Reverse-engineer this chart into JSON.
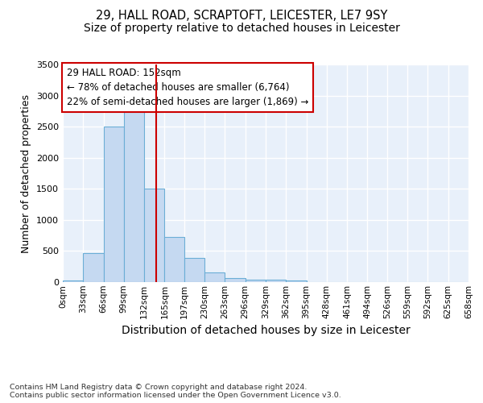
{
  "title1": "29, HALL ROAD, SCRAPTOFT, LEICESTER, LE7 9SY",
  "title2": "Size of property relative to detached houses in Leicester",
  "xlabel": "Distribution of detached houses by size in Leicester",
  "ylabel": "Number of detached properties",
  "footnote": "Contains HM Land Registry data © Crown copyright and database right 2024.\nContains public sector information licensed under the Open Government Licence v3.0.",
  "bin_edges": [
    0,
    33,
    66,
    99,
    132,
    165,
    197,
    230,
    263,
    296,
    329,
    362,
    395,
    428,
    461,
    494,
    526,
    559,
    592,
    625,
    658
  ],
  "bin_labels": [
    "0sqm",
    "33sqm",
    "66sqm",
    "99sqm",
    "132sqm",
    "165sqm",
    "197sqm",
    "230sqm",
    "263sqm",
    "296sqm",
    "329sqm",
    "362sqm",
    "395sqm",
    "428sqm",
    "461sqm",
    "494sqm",
    "526sqm",
    "559sqm",
    "592sqm",
    "625sqm",
    "658sqm"
  ],
  "bar_heights": [
    20,
    470,
    2500,
    2820,
    1500,
    730,
    385,
    155,
    65,
    45,
    45,
    25,
    0,
    0,
    0,
    0,
    0,
    0,
    0,
    0
  ],
  "bar_color": "#C5D9F1",
  "bar_edge_color": "#6BAED6",
  "vline_x": 152,
  "vline_color": "#CC0000",
  "annotation_title": "29 HALL ROAD: 152sqm",
  "annotation_line2": "← 78% of detached houses are smaller (6,764)",
  "annotation_line3": "22% of semi-detached houses are larger (1,869) →",
  "annotation_box_color": "#CC0000",
  "ylim": [
    0,
    3500
  ],
  "yticks": [
    0,
    500,
    1000,
    1500,
    2000,
    2500,
    3000,
    3500
  ],
  "bg_color": "#DDEEFF",
  "plot_bg_color": "#E8F0FA",
  "fig_bg_color": "#FFFFFF",
  "title1_fontsize": 10.5,
  "title2_fontsize": 10,
  "xlabel_fontsize": 10,
  "ylabel_fontsize": 9
}
